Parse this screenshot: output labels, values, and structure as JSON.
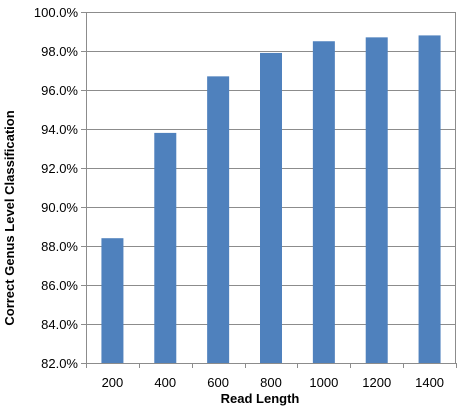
{
  "chart_data": {
    "type": "bar",
    "title": "",
    "xlabel": "Read Length",
    "ylabel": "Correct Genus Level Classification",
    "categories": [
      "200",
      "400",
      "600",
      "800",
      "1000",
      "1200",
      "1400"
    ],
    "values": [
      88.4,
      93.8,
      96.7,
      97.9,
      98.5,
      98.7,
      98.8
    ],
    "ylim": [
      82.0,
      100.0
    ],
    "yticks": [
      82.0,
      84.0,
      86.0,
      88.0,
      90.0,
      92.0,
      94.0,
      96.0,
      98.0,
      100.0
    ],
    "ytick_labels": [
      "82.0%",
      "84.0%",
      "86.0%",
      "88.0%",
      "90.0%",
      "92.0%",
      "94.0%",
      "96.0%",
      "98.0%",
      "100.0%"
    ],
    "grid": true,
    "legend": "none",
    "colors": {
      "bar": "#4f81bd",
      "grid": "#8c8c8c",
      "axis": "#8c8c8c"
    }
  }
}
